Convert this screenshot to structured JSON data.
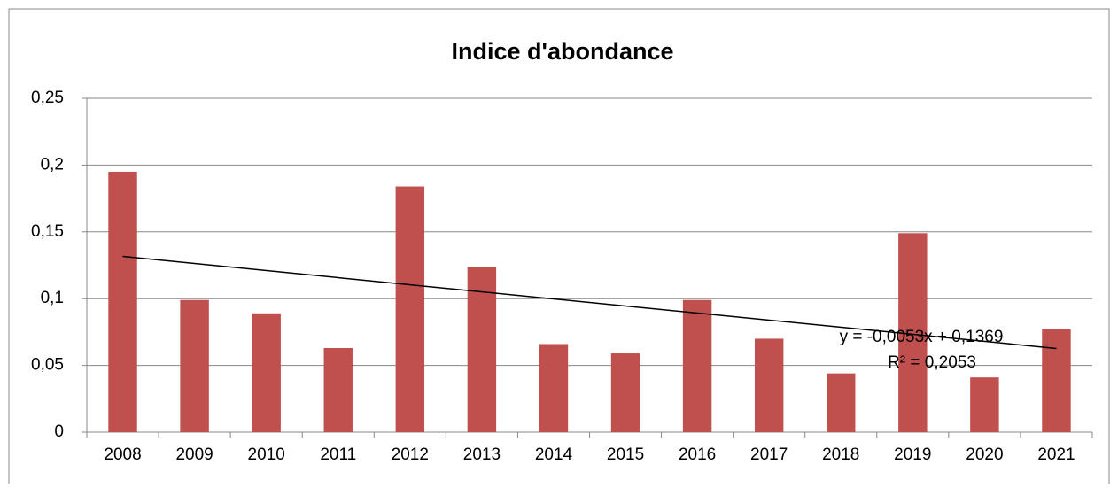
{
  "chart_data": {
    "type": "bar",
    "title": "Indice d'abondance",
    "categories": [
      "2008",
      "2009",
      "2010",
      "2011",
      "2012",
      "2013",
      "2014",
      "2015",
      "2016",
      "2017",
      "2018",
      "2019",
      "2020",
      "2021"
    ],
    "values": [
      0.195,
      0.099,
      0.089,
      0.063,
      0.184,
      0.124,
      0.066,
      0.059,
      0.099,
      0.07,
      0.044,
      0.149,
      0.041,
      0.077
    ],
    "color": "#c0504d",
    "ylim": [
      0,
      0.25
    ],
    "yticks": [
      0,
      {
        "value": 0.05,
        "label": "0,05"
      },
      {
        "value": 0.1,
        "label": "0,1"
      },
      {
        "value": 0.15,
        "label": "0,15"
      },
      {
        "value": 0.2,
        "label": "0,2"
      },
      {
        "value": 0.25,
        "label": "0,25"
      }
    ],
    "grid": true,
    "trendline": {
      "slope": -0.0053,
      "intercept": 0.1369,
      "label": "y = -0,0053x + 0,1369",
      "r2_label": "R² = 0,2053"
    }
  }
}
